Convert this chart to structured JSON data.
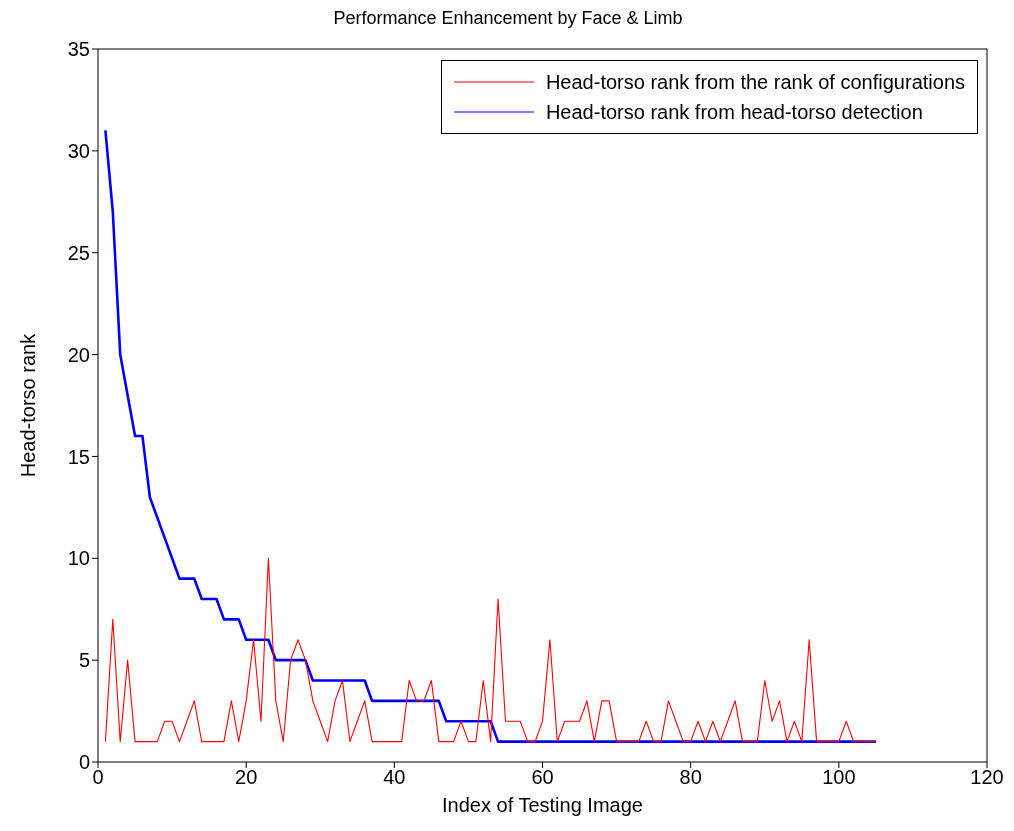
{
  "chart_data": {
    "type": "line",
    "title": "Performance Enhancement by Face & Limb",
    "xlabel": "Index of Testing Image",
    "ylabel": "Head-torso rank",
    "x": [
      1,
      2,
      3,
      4,
      5,
      6,
      7,
      8,
      9,
      10,
      11,
      12,
      13,
      14,
      15,
      16,
      17,
      18,
      19,
      20,
      21,
      22,
      23,
      24,
      25,
      26,
      27,
      28,
      29,
      30,
      31,
      32,
      33,
      34,
      35,
      36,
      37,
      38,
      39,
      40,
      41,
      42,
      43,
      44,
      45,
      46,
      47,
      48,
      49,
      50,
      51,
      52,
      53,
      54,
      55,
      56,
      57,
      58,
      59,
      60,
      61,
      62,
      63,
      64,
      65,
      66,
      67,
      68,
      69,
      70,
      71,
      72,
      73,
      74,
      75,
      76,
      77,
      78,
      79,
      80,
      81,
      82,
      83,
      84,
      85,
      86,
      87,
      88,
      89,
      90,
      91,
      92,
      93,
      94,
      95,
      96,
      97,
      98,
      99,
      100,
      101,
      102,
      103,
      104,
      105
    ],
    "series": [
      {
        "name": "Head-torso rank from the rank of configurations",
        "color": "#ff0000",
        "values": [
          1,
          7,
          1,
          5,
          1,
          1,
          1,
          1,
          2,
          2,
          1,
          2,
          3,
          1,
          1,
          1,
          1,
          3,
          1,
          3,
          6,
          2,
          10,
          3,
          1,
          5,
          6,
          5,
          3,
          2,
          1,
          3,
          4,
          1,
          2,
          3,
          1,
          1,
          1,
          1,
          1,
          4,
          3,
          3,
          4,
          1,
          1,
          1,
          2,
          1,
          1,
          4,
          1,
          8,
          2,
          2,
          2,
          1,
          1,
          2,
          6,
          1,
          2,
          2,
          2,
          3,
          1,
          3,
          3,
          1,
          1,
          1,
          1,
          2,
          1,
          1,
          3,
          2,
          1,
          1,
          2,
          1,
          2,
          1,
          2,
          3,
          1,
          1,
          1,
          4,
          2,
          3,
          1,
          2,
          1,
          6,
          1,
          1,
          1,
          1,
          2,
          1,
          1,
          1,
          1
        ]
      },
      {
        "name": "Head-torso rank from head-torso detection",
        "color": "#0000ff",
        "values": [
          31,
          27,
          20,
          18,
          16,
          16,
          13,
          12,
          11,
          10,
          9,
          9,
          9,
          8,
          8,
          8,
          7,
          7,
          7,
          6,
          6,
          6,
          6,
          5,
          5,
          5,
          5,
          5,
          4,
          4,
          4,
          4,
          4,
          4,
          4,
          4,
          3,
          3,
          3,
          3,
          3,
          3,
          3,
          3,
          3,
          3,
          2,
          2,
          2,
          2,
          2,
          2,
          2,
          1,
          1,
          1,
          1,
          1,
          1,
          1,
          1,
          1,
          1,
          1,
          1,
          1,
          1,
          1,
          1,
          1,
          1,
          1,
          1,
          1,
          1,
          1,
          1,
          1,
          1,
          1,
          1,
          1,
          1,
          1,
          1,
          1,
          1,
          1,
          1,
          1,
          1,
          1,
          1,
          1,
          1,
          1,
          1,
          1,
          1,
          1,
          1,
          1,
          1,
          1,
          1
        ]
      }
    ],
    "xlim": [
      0,
      120
    ],
    "xticks": [
      0,
      20,
      40,
      60,
      80,
      100,
      120
    ],
    "ylim": [
      0,
      35
    ],
    "yticks": [
      0,
      5,
      10,
      15,
      20,
      25,
      30,
      35
    ],
    "grid": false,
    "legend": "top right",
    "marker": "none",
    "line_style": "solid"
  }
}
